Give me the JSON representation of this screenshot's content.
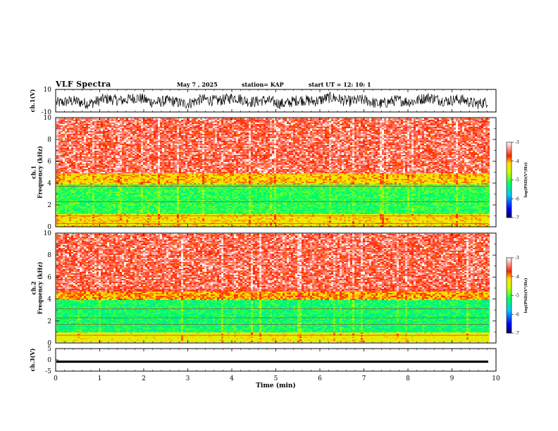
{
  "header": {
    "title": "VLF Spectra",
    "date": "May 7 , 2025",
    "station": "station= KAP",
    "start": "start  UT =  12: 10: 1"
  },
  "chart_data": [
    {
      "type": "line",
      "panel": "ch1-waveform",
      "ylabel": "ch.1(V)",
      "ylim": [
        -10,
        10
      ],
      "yticks": [
        "10",
        "-10"
      ],
      "xlim": [
        0,
        10
      ],
      "series": [
        {
          "description_values_range": [
            -8,
            8
          ]
        }
      ],
      "color": "#000000"
    },
    {
      "type": "heatmap",
      "panel": "ch1-spectrogram",
      "ylabel": "ch.1\nFrequency  (kHz)",
      "ylim": [
        0,
        10
      ],
      "yticks": [
        "0",
        "2",
        "4",
        "6",
        "8",
        "10"
      ],
      "xlim": [
        0,
        9.85
      ],
      "bands": [
        {
          "from_khz": 0,
          "to_khz": 1.2,
          "level": -4.2
        },
        {
          "from_khz": 1.2,
          "to_khz": 4.0,
          "level": -5.1
        },
        {
          "from_khz": 4.0,
          "to_khz": 5.0,
          "level": -4.1
        },
        {
          "from_khz": 5.0,
          "to_khz": 10,
          "level": -3.6
        }
      ],
      "colorbar": {
        "label": "log(PSD)(V²/Hz)",
        "min": -7,
        "max": -3,
        "ticks": [
          "-3",
          "-4",
          "-5",
          "-6",
          "-7"
        ]
      }
    },
    {
      "type": "heatmap",
      "panel": "ch2-spectrogram",
      "ylabel": "ch.2\nFrequency  (kHz)",
      "ylim": [
        0,
        10
      ],
      "yticks": [
        "0",
        "2",
        "4",
        "6",
        "8",
        "10"
      ],
      "xlim": [
        0,
        9.85
      ],
      "bands": [
        {
          "from_khz": 0,
          "to_khz": 1.0,
          "level": -4.3
        },
        {
          "from_khz": 1.0,
          "to_khz": 4.0,
          "level": -5.2
        },
        {
          "from_khz": 4.0,
          "to_khz": 4.8,
          "level": -4.0
        },
        {
          "from_khz": 4.8,
          "to_khz": 10,
          "level": -3.6
        }
      ],
      "colorbar": {
        "label": "log(PSD)(V²/Hz)",
        "min": -7,
        "max": -3,
        "ticks": [
          "-3",
          "-4",
          "-5",
          "-6",
          "-7"
        ]
      }
    },
    {
      "type": "line",
      "panel": "ch3-waveform",
      "ylabel": "ch.3(V)",
      "ylim": [
        -5,
        5
      ],
      "yticks": [
        "5",
        "0",
        "-5"
      ],
      "xlim": [
        0,
        10
      ],
      "series": [
        {
          "constant_value": -0.8,
          "spread": 0.5
        }
      ],
      "color": "#000000",
      "xlabel": "Time  (min)",
      "xticks": [
        "0",
        "1",
        "2",
        "3",
        "4",
        "5",
        "6",
        "7",
        "8",
        "9",
        "10"
      ]
    }
  ]
}
